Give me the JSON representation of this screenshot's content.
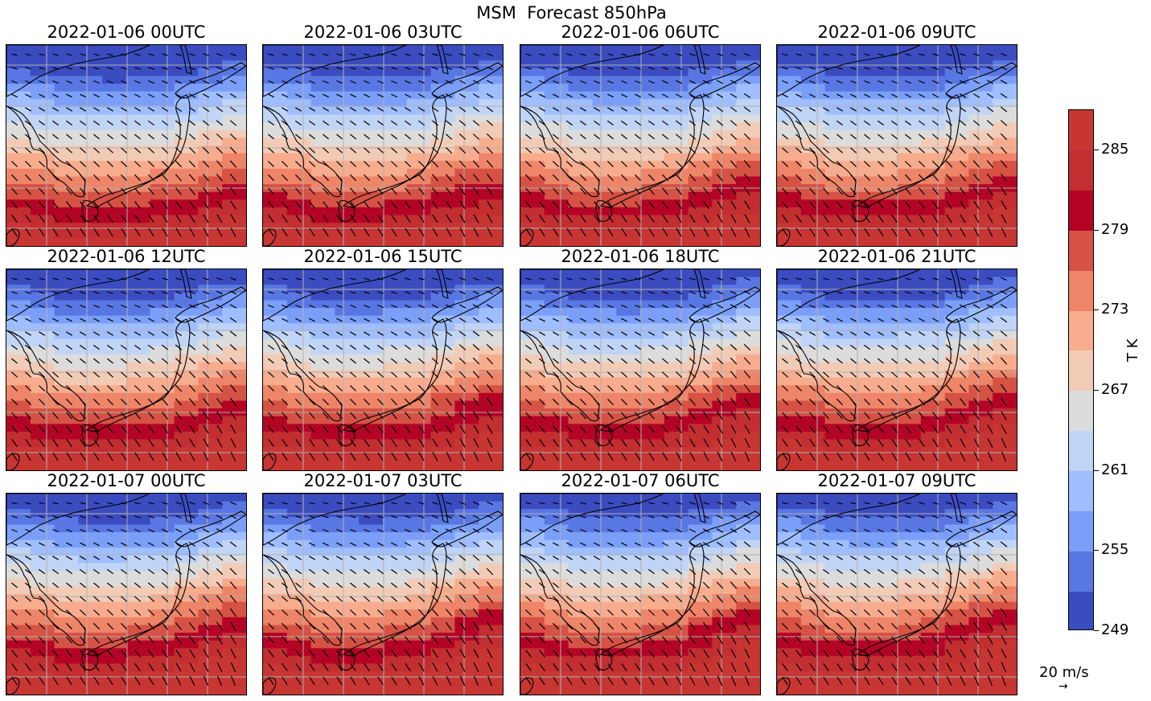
{
  "figure": {
    "title": "MSM  Forecast 850hPa",
    "panels": [
      {
        "title": "2022-01-06 00UTC",
        "warm_shift": 0.0,
        "bulge": 0.45
      },
      {
        "title": "2022-01-06 03UTC",
        "warm_shift": 0.02,
        "bulge": 0.5
      },
      {
        "title": "2022-01-06 06UTC",
        "warm_shift": 0.04,
        "bulge": 0.55
      },
      {
        "title": "2022-01-06 09UTC",
        "warm_shift": 0.06,
        "bulge": 0.6
      },
      {
        "title": "2022-01-06 12UTC",
        "warm_shift": 0.08,
        "bulge": 0.66
      },
      {
        "title": "2022-01-06 15UTC",
        "warm_shift": 0.1,
        "bulge": 0.72
      },
      {
        "title": "2022-01-06 18UTC",
        "warm_shift": 0.12,
        "bulge": 0.78
      },
      {
        "title": "2022-01-06 21UTC",
        "warm_shift": 0.14,
        "bulge": 0.84
      },
      {
        "title": "2022-01-07 00UTC",
        "warm_shift": 0.16,
        "bulge": 0.9
      },
      {
        "title": "2022-01-07 03UTC",
        "warm_shift": 0.18,
        "bulge": 0.94
      },
      {
        "title": "2022-01-07 06UTC",
        "warm_shift": 0.2,
        "bulge": 0.97
      },
      {
        "title": "2022-01-07 09UTC",
        "warm_shift": 0.22,
        "bulge": 1.0
      }
    ]
  },
  "colorbar": {
    "label": "T K",
    "min": 249,
    "max": 288,
    "ticks": [
      "285",
      "279",
      "273",
      "267",
      "261",
      "255",
      "249"
    ],
    "tick_values": [
      285,
      279,
      273,
      267,
      261,
      255,
      249
    ],
    "levels": [
      249,
      252,
      255,
      258,
      261,
      264,
      267,
      270,
      273,
      276,
      279,
      282,
      285,
      288
    ],
    "colors": [
      "#3b4cc0",
      "#5977e3",
      "#7b9ff9",
      "#9ebeff",
      "#c0d4f5",
      "#dddcdc",
      "#f2cbb7",
      "#f7ac8e",
      "#ee8468",
      "#d65244",
      "#b40426",
      "#c32e31",
      "#c83634"
    ]
  },
  "quiver_key": {
    "label": "20 m/s",
    "arrow": "→"
  },
  "map_colors": {
    "coast": "#000000",
    "grid": "#b0b0b0",
    "arrow": "#000000"
  }
}
